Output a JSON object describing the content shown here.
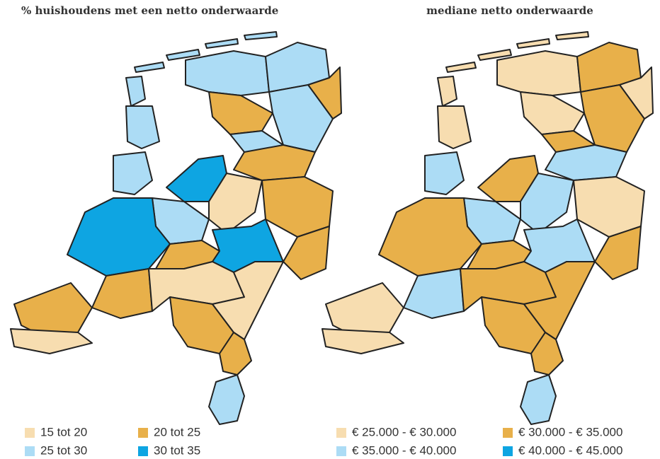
{
  "maps": [
    {
      "title": "% huishoudens met een netto onderwaarde",
      "legend": [
        {
          "label": "15 tot 20",
          "color": "#f7ddb0"
        },
        {
          "label": "20 tot 25",
          "color": "#e8b04a"
        },
        {
          "label": "25 tot 30",
          "color": "#acdcf5"
        },
        {
          "label": "30 tot 35",
          "color": "#0ea5e2"
        }
      ]
    },
    {
      "title": "mediane netto onderwaarde",
      "legend": [
        {
          "label": "€ 25.000 - € 30.000",
          "color": "#f7ddb0"
        },
        {
          "label": "€ 30.000 - € 35.000",
          "color": "#e8b04a"
        },
        {
          "label": "€ 35.000 - € 40.000",
          "color": "#acdcf5"
        },
        {
          "label": "€ 40.000 - € 45.000",
          "color": "#0ea5e2"
        }
      ]
    }
  ]
}
